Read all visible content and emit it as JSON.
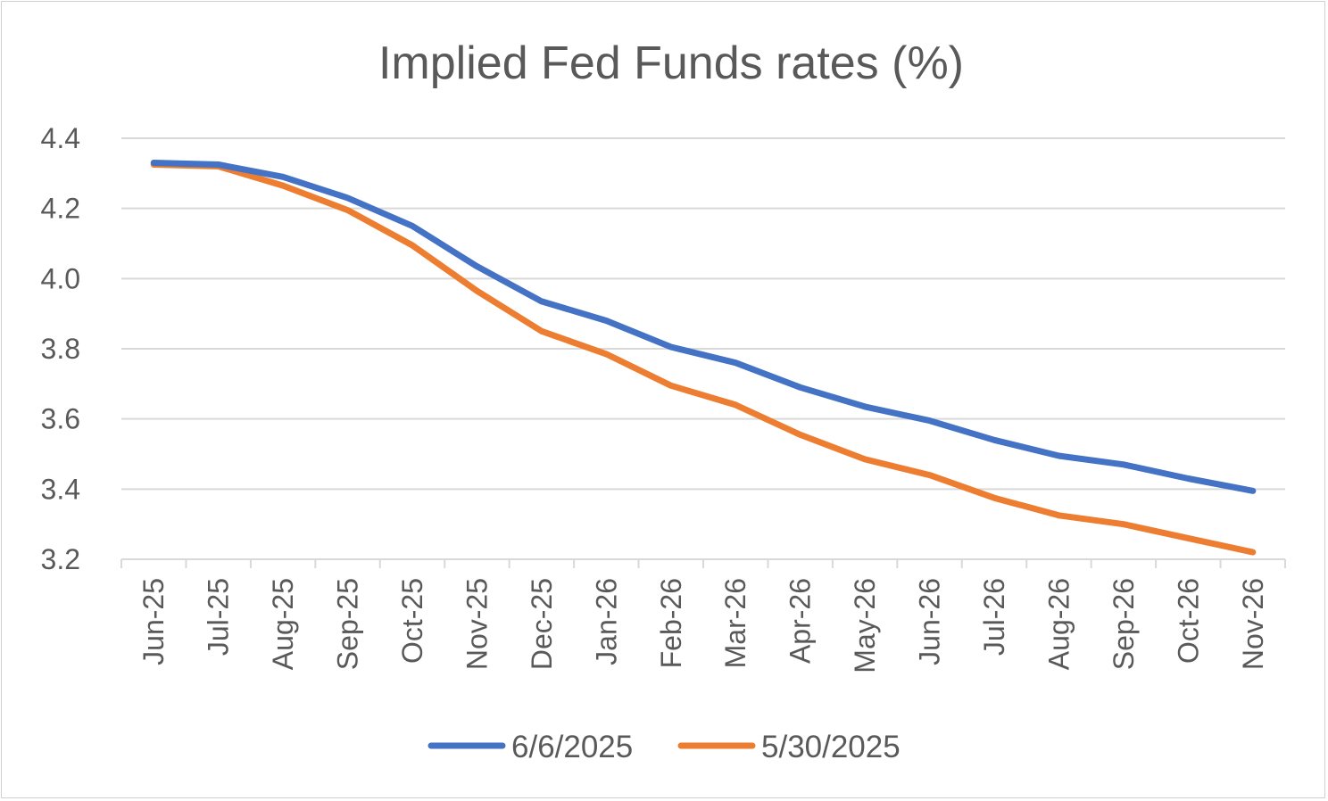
{
  "chart_data": {
    "type": "line",
    "title": "Implied Fed Funds rates (%)",
    "xlabel": "",
    "ylabel": "",
    "ylim": [
      3.2,
      4.4
    ],
    "yticks": [
      "3.2",
      "3.4",
      "3.6",
      "3.8",
      "4.0",
      "4.2",
      "4.4"
    ],
    "grid": true,
    "legend_position": "bottom",
    "categories": [
      "Jun-25",
      "Jul-25",
      "Aug-25",
      "Sep-25",
      "Oct-25",
      "Nov-25",
      "Dec-25",
      "Jan-26",
      "Feb-26",
      "Mar-26",
      "Apr-26",
      "May-26",
      "Jun-26",
      "Jul-26",
      "Aug-26",
      "Sep-26",
      "Oct-26",
      "Nov-26"
    ],
    "series": [
      {
        "name": "6/6/2025",
        "color": "#4472c4",
        "values": [
          4.33,
          4.325,
          4.29,
          4.23,
          4.15,
          4.035,
          3.935,
          3.88,
          3.805,
          3.76,
          3.69,
          3.635,
          3.595,
          3.54,
          3.495,
          3.47,
          3.43,
          3.395
        ]
      },
      {
        "name": "5/30/2025",
        "color": "#ed7d31",
        "values": [
          4.325,
          4.32,
          4.265,
          4.195,
          4.095,
          3.965,
          3.85,
          3.785,
          3.695,
          3.64,
          3.555,
          3.485,
          3.44,
          3.375,
          3.325,
          3.3,
          3.26,
          3.22
        ]
      }
    ]
  }
}
